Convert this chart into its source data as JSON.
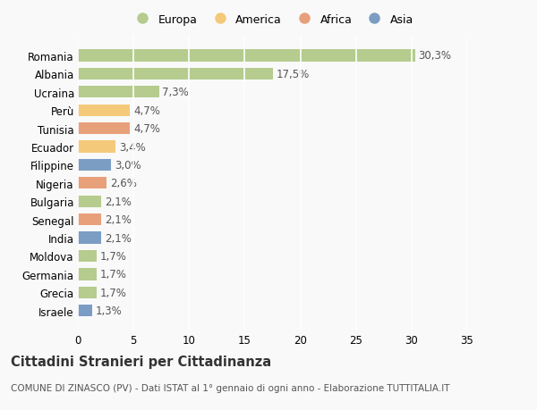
{
  "countries": [
    "Romania",
    "Albania",
    "Ucraina",
    "Perù",
    "Tunisia",
    "Ecuador",
    "Filippine",
    "Nigeria",
    "Bulgaria",
    "Senegal",
    "India",
    "Moldova",
    "Germania",
    "Grecia",
    "Israele"
  ],
  "values": [
    30.3,
    17.5,
    7.3,
    4.7,
    4.7,
    3.4,
    3.0,
    2.6,
    2.1,
    2.1,
    2.1,
    1.7,
    1.7,
    1.7,
    1.3
  ],
  "labels": [
    "30,3%",
    "17,5%",
    "7,3%",
    "4,7%",
    "4,7%",
    "3,4%",
    "3,0%",
    "2,6%",
    "2,1%",
    "2,1%",
    "2,1%",
    "1,7%",
    "1,7%",
    "1,7%",
    "1,3%"
  ],
  "categories": [
    "Europa",
    "America",
    "Africa",
    "Asia"
  ],
  "bar_colors": [
    "#b5cc8e",
    "#b5cc8e",
    "#b5cc8e",
    "#f5c97a",
    "#e8a07a",
    "#f5c97a",
    "#7b9dc4",
    "#e8a07a",
    "#b5cc8e",
    "#e8a07a",
    "#7b9dc4",
    "#b5cc8e",
    "#b5cc8e",
    "#b5cc8e",
    "#7b9dc4"
  ],
  "legend_colors": [
    "#b5cc8e",
    "#f5c97a",
    "#e8a07a",
    "#7b9dc4"
  ],
  "title": "Cittadini Stranieri per Cittadinanza",
  "subtitle": "COMUNE DI ZINASCO (PV) - Dati ISTAT al 1° gennaio di ogni anno - Elaborazione TUTTITALIA.IT",
  "xlim": [
    0,
    35
  ],
  "xticks": [
    0,
    5,
    10,
    15,
    20,
    25,
    30,
    35
  ],
  "background_color": "#f9f9f9",
  "grid_color": "#ffffff",
  "label_fontsize": 8.5,
  "bar_label_fontsize": 8.5,
  "title_fontsize": 10.5,
  "subtitle_fontsize": 7.5
}
